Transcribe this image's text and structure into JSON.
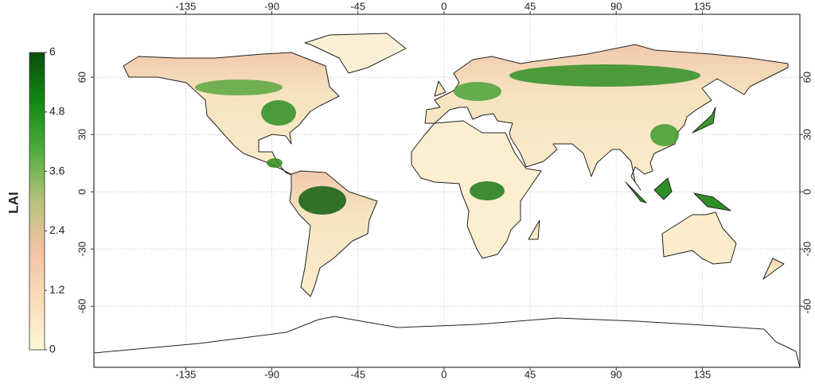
{
  "colorbar": {
    "label": "LAI",
    "lim": [
      0,
      6
    ],
    "ticks": [
      0,
      1.2,
      2.4,
      3.6,
      4.8,
      6
    ],
    "colors": [
      "#fff7d6",
      "#f9ddb8",
      "#f4c3a4",
      "#b8c27a",
      "#4fae3c",
      "#128a12",
      "#0b4d0b"
    ]
  },
  "map": {
    "xlim": [
      -183,
      186
    ],
    "ylim": [
      -92,
      93
    ],
    "xticks": [
      -135,
      -90,
      -45,
      0,
      45,
      90,
      135
    ],
    "yticks": [
      -60,
      -30,
      0,
      30,
      60
    ],
    "grid": true
  }
}
